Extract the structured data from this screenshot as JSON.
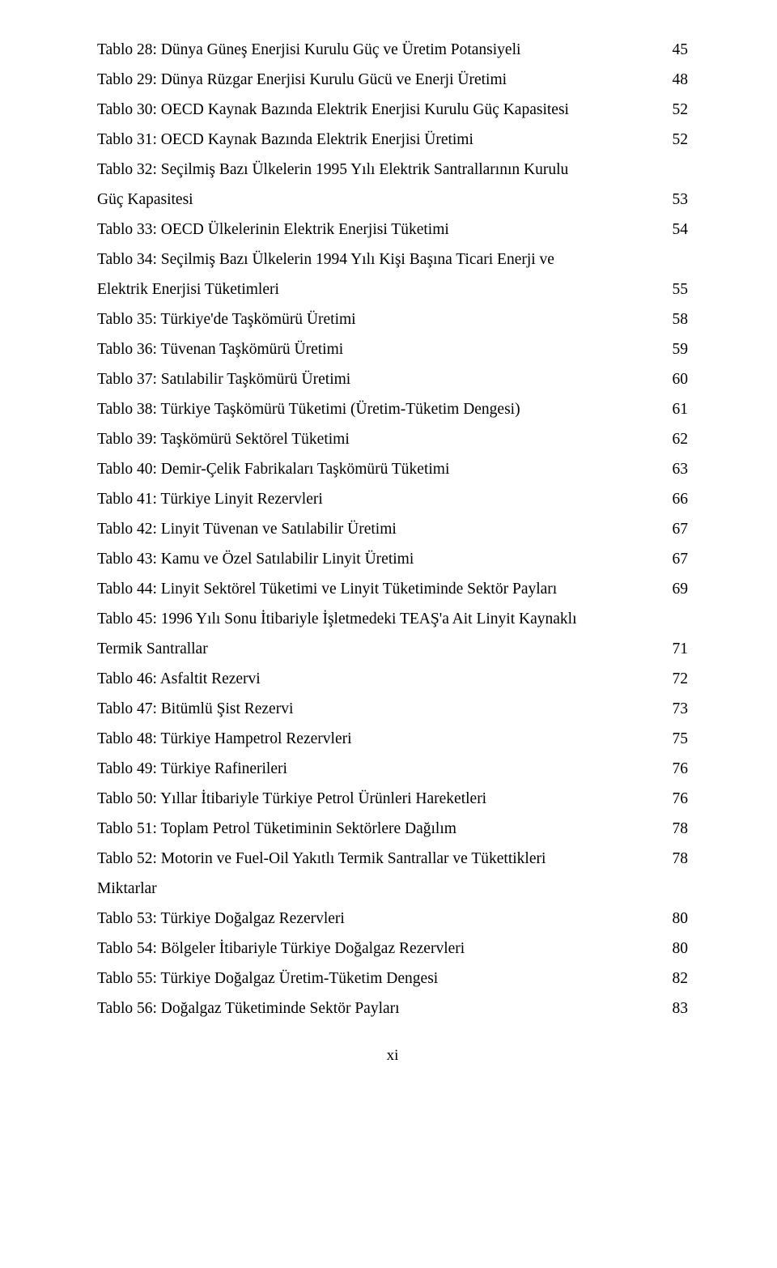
{
  "text_color": "#000000",
  "background_color": "#ffffff",
  "font_family": "Times New Roman",
  "font_size_pt": 12,
  "toc": [
    {
      "label": "Tablo 28: Dünya Güneş Enerjisi Kurulu Güç ve Üretim Potansiyeli",
      "page": "45"
    },
    {
      "label": "Tablo 29: Dünya Rüzgar Enerjisi Kurulu Gücü ve Enerji Üretimi",
      "page": "48"
    },
    {
      "label": "Tablo 30: OECD Kaynak Bazında Elektrik Enerjisi Kurulu Güç Kapasitesi",
      "page": "52"
    },
    {
      "label": "Tablo 31: OECD Kaynak Bazında Elektrik Enerjisi Üretimi",
      "page": "52"
    },
    {
      "label": "Tablo 32: Seçilmiş Bazı Ülkelerin 1995 Yılı Elektrik Santrallarının Kurulu",
      "page": ""
    },
    {
      "label": "Güç Kapasitesi",
      "page": "53"
    },
    {
      "label": "Tablo 33: OECD Ülkelerinin Elektrik Enerjisi Tüketimi",
      "page": "54"
    },
    {
      "label": "Tablo 34: Seçilmiş Bazı Ülkelerin 1994 Yılı Kişi Başına Ticari Enerji ve",
      "page": ""
    },
    {
      "label": "Elektrik Enerjisi Tüketimleri",
      "page": "55"
    },
    {
      "label": "Tablo 35: Türkiye'de Taşkömürü Üretimi",
      "page": "58"
    },
    {
      "label": "Tablo 36: Tüvenan Taşkömürü Üretimi",
      "page": "59"
    },
    {
      "label": "Tablo 37: Satılabilir Taşkömürü Üretimi",
      "page": "60"
    },
    {
      "label": "Tablo 38: Türkiye Taşkömürü Tüketimi (Üretim-Tüketim Dengesi)",
      "page": "61"
    },
    {
      "label": "Tablo 39: Taşkömürü Sektörel Tüketimi",
      "page": "62"
    },
    {
      "label": "Tablo 40: Demir-Çelik Fabrikaları Taşkömürü Tüketimi",
      "page": "63"
    },
    {
      "label": "Tablo 41: Türkiye Linyit Rezervleri",
      "page": "66"
    },
    {
      "label": "Tablo 42: Linyit Tüvenan ve Satılabilir Üretimi",
      "page": "67"
    },
    {
      "label": "Tablo 43: Kamu ve Özel Satılabilir Linyit Üretimi",
      "page": "67"
    },
    {
      "label": "Tablo 44: Linyit Sektörel Tüketimi ve Linyit Tüketiminde Sektör Payları",
      "page": "69"
    },
    {
      "label": "Tablo 45: 1996 Yılı Sonu İtibariyle İşletmedeki TEAŞ'a Ait Linyit Kaynaklı",
      "page": ""
    },
    {
      "label": "Termik Santrallar",
      "page": "71"
    },
    {
      "label": "Tablo 46: Asfaltit Rezervi",
      "page": "72"
    },
    {
      "label": "Tablo 47: Bitümlü Şist Rezervi",
      "page": "73"
    },
    {
      "label": "Tablo 48: Türkiye Hampetrol Rezervleri",
      "page": "75"
    },
    {
      "label": "Tablo 49: Türkiye Rafinerileri",
      "page": "76"
    },
    {
      "label": "Tablo 50: Yıllar İtibariyle Türkiye Petrol Ürünleri Hareketleri",
      "page": "76"
    },
    {
      "label": "Tablo 51: Toplam Petrol Tüketiminin Sektörlere Dağılım",
      "page": "78"
    },
    {
      "label": "Tablo 52: Motorin ve Fuel-Oil Yakıtlı Termik Santrallar ve Tükettikleri",
      "page": "78"
    },
    {
      "label": "Miktarlar",
      "page": ""
    },
    {
      "label": "Tablo 53: Türkiye Doğalgaz Rezervleri",
      "page": "80"
    },
    {
      "label": "Tablo 54: Bölgeler İtibariyle Türkiye Doğalgaz Rezervleri",
      "page": "80"
    },
    {
      "label": "Tablo 55: Türkiye Doğalgaz Üretim-Tüketim Dengesi",
      "page": "82"
    },
    {
      "label": "Tablo 56: Doğalgaz Tüketiminde Sektör Payları",
      "page": "83"
    }
  ],
  "footer": "xi"
}
